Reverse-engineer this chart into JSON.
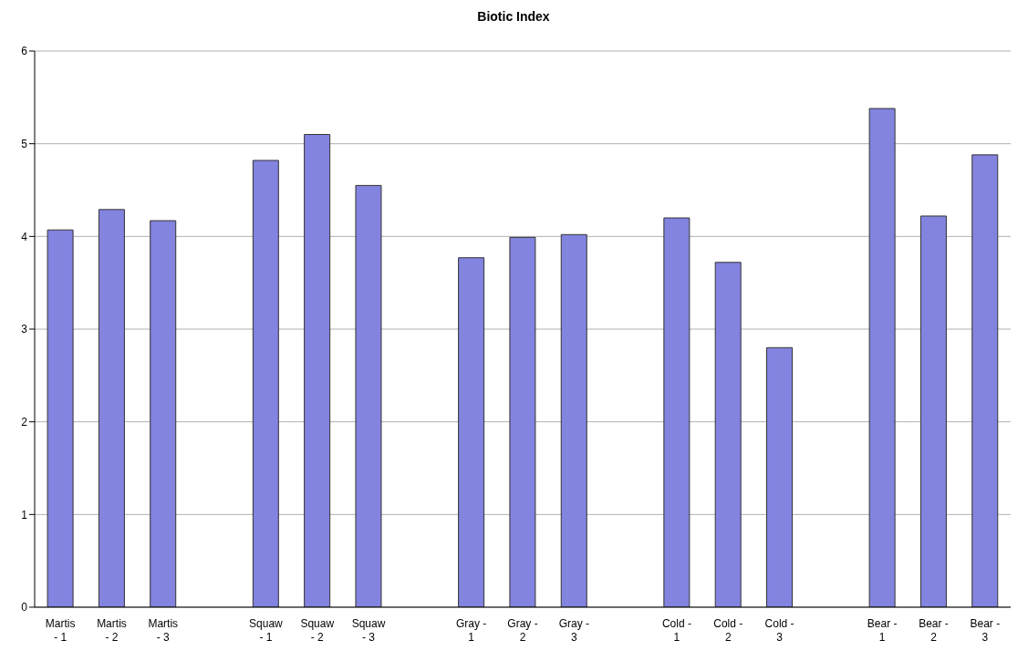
{
  "chart_data": {
    "type": "bar",
    "title": "Biotic Index",
    "categories": [
      "Martis - 1",
      "Martis - 2",
      "Martis - 3",
      null,
      "Squaw - 1",
      "Squaw - 2",
      "Squaw - 3",
      null,
      "Gray - 1",
      "Gray - 2",
      "Gray - 3",
      null,
      "Cold - 1",
      "Cold - 2",
      "Cold - 3",
      null,
      "Bear - 1",
      "Bear - 2",
      "Bear - 3"
    ],
    "values": [
      4.07,
      4.29,
      4.17,
      null,
      4.82,
      5.1,
      4.55,
      null,
      3.77,
      3.99,
      4.02,
      null,
      4.2,
      3.72,
      2.8,
      null,
      5.38,
      4.22,
      4.88
    ],
    "color": "#8383e0",
    "ylim": [
      0,
      6
    ],
    "yticks": [
      0,
      1,
      2,
      3,
      4,
      5,
      6
    ],
    "grid": "y"
  }
}
